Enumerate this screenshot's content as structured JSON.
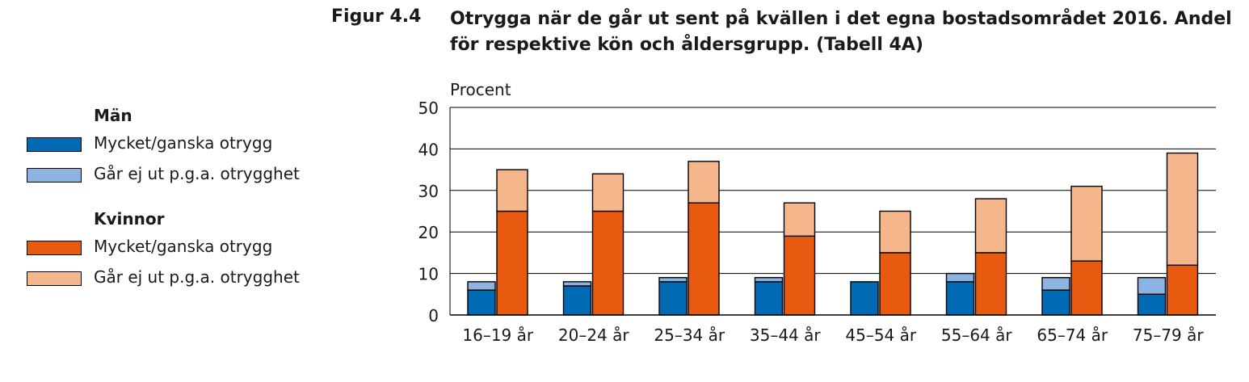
{
  "figure": {
    "label": "Figur 4.4",
    "title": "Otrygga när de går ut sent på kvällen i det egna bostadsområdet 2016. Andel för respektive kön och åldersgrupp. (Tabell 4A)"
  },
  "legend": {
    "groups": [
      {
        "title": "Män",
        "items": [
          {
            "label": "Mycket/ganska otrygg",
            "color": "#006ab4"
          },
          {
            "label": "Går ej ut p.g.a. otrygghet",
            "color": "#8db3e2"
          }
        ]
      },
      {
        "title": "Kvinnor",
        "items": [
          {
            "label": "Mycket/ganska otrygg",
            "color": "#e85a0f"
          },
          {
            "label": "Går ej ut p.g.a. otrygghet",
            "color": "#f5b68c"
          }
        ]
      }
    ]
  },
  "chart_data": {
    "type": "bar",
    "stacked": true,
    "ylabel": "Procent",
    "ylim": [
      0,
      50
    ],
    "yticks": [
      0,
      10,
      20,
      30,
      40,
      50
    ],
    "grid": true,
    "categories": [
      "16–19 år",
      "20–24 år",
      "25–34 år",
      "35–44 år",
      "45–54 år",
      "55–64 år",
      "65–74 år",
      "75–79 år"
    ],
    "series": [
      {
        "group": "Män",
        "name": "Mycket/ganska otrygg",
        "values": [
          6,
          7,
          8,
          8,
          8,
          8,
          6,
          5
        ]
      },
      {
        "group": "Män",
        "name": "Går ej ut p.g.a. otrygghet",
        "values": [
          2,
          1,
          1,
          1,
          0,
          2,
          3,
          4
        ]
      },
      {
        "group": "Kvinnor",
        "name": "Mycket/ganska otrygg",
        "values": [
          25,
          25,
          27,
          19,
          15,
          15,
          13,
          12
        ]
      },
      {
        "group": "Kvinnor",
        "name": "Går ej ut p.g.a. otrygghet",
        "values": [
          10,
          9,
          10,
          8,
          10,
          13,
          18,
          27
        ]
      }
    ]
  }
}
